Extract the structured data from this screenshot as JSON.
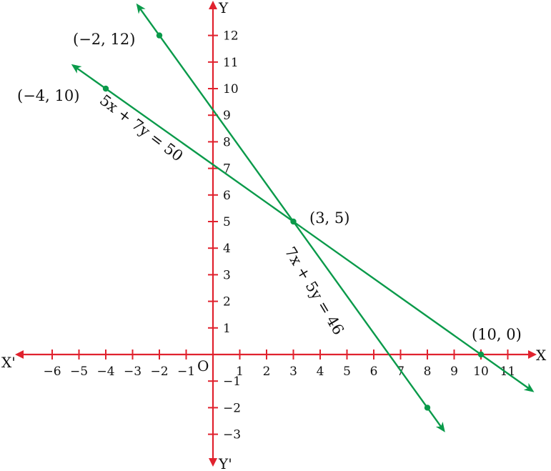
{
  "chart_data": {
    "type": "line",
    "axes": {
      "x_label": "X",
      "x_neg_label": "X'",
      "y_label": "Y",
      "y_neg_label": "Y'",
      "origin_label": "O",
      "xlim": [
        -7,
        12
      ],
      "ylim": [
        -4,
        13
      ],
      "x_ticks": [
        -6,
        -5,
        -4,
        -3,
        -2,
        -1,
        1,
        2,
        3,
        4,
        5,
        6,
        7,
        8,
        9,
        10,
        11
      ],
      "y_ticks": [
        -3,
        -2,
        -1,
        1,
        2,
        3,
        4,
        5,
        6,
        7,
        8,
        9,
        10,
        11,
        12
      ],
      "color": "#e0222e"
    },
    "series": [
      {
        "name": "7x + 5y = 46",
        "equation": "7x + 5y = 46",
        "a": 7,
        "b": 5,
        "c": 46,
        "x_range": [
          -2.8,
          8.6
        ],
        "color": "#0a9a4a"
      },
      {
        "name": "5x + 7y = 50",
        "equation": "5x + 7y = 50",
        "a": 5,
        "b": 7,
        "c": 50,
        "x_range": [
          -5.2,
          11.9
        ],
        "color": "#0a9a4a"
      }
    ],
    "points": [
      {
        "x": -2,
        "y": 12,
        "label": "(−2, 12)"
      },
      {
        "x": -4,
        "y": 10,
        "label": "(−4, 10)"
      },
      {
        "x": 3,
        "y": 5,
        "label": "(3, 5)"
      },
      {
        "x": 10,
        "y": 0,
        "label": "(10, 0)"
      },
      {
        "x": 8,
        "y": -2,
        "label": ""
      }
    ],
    "grid": false
  }
}
